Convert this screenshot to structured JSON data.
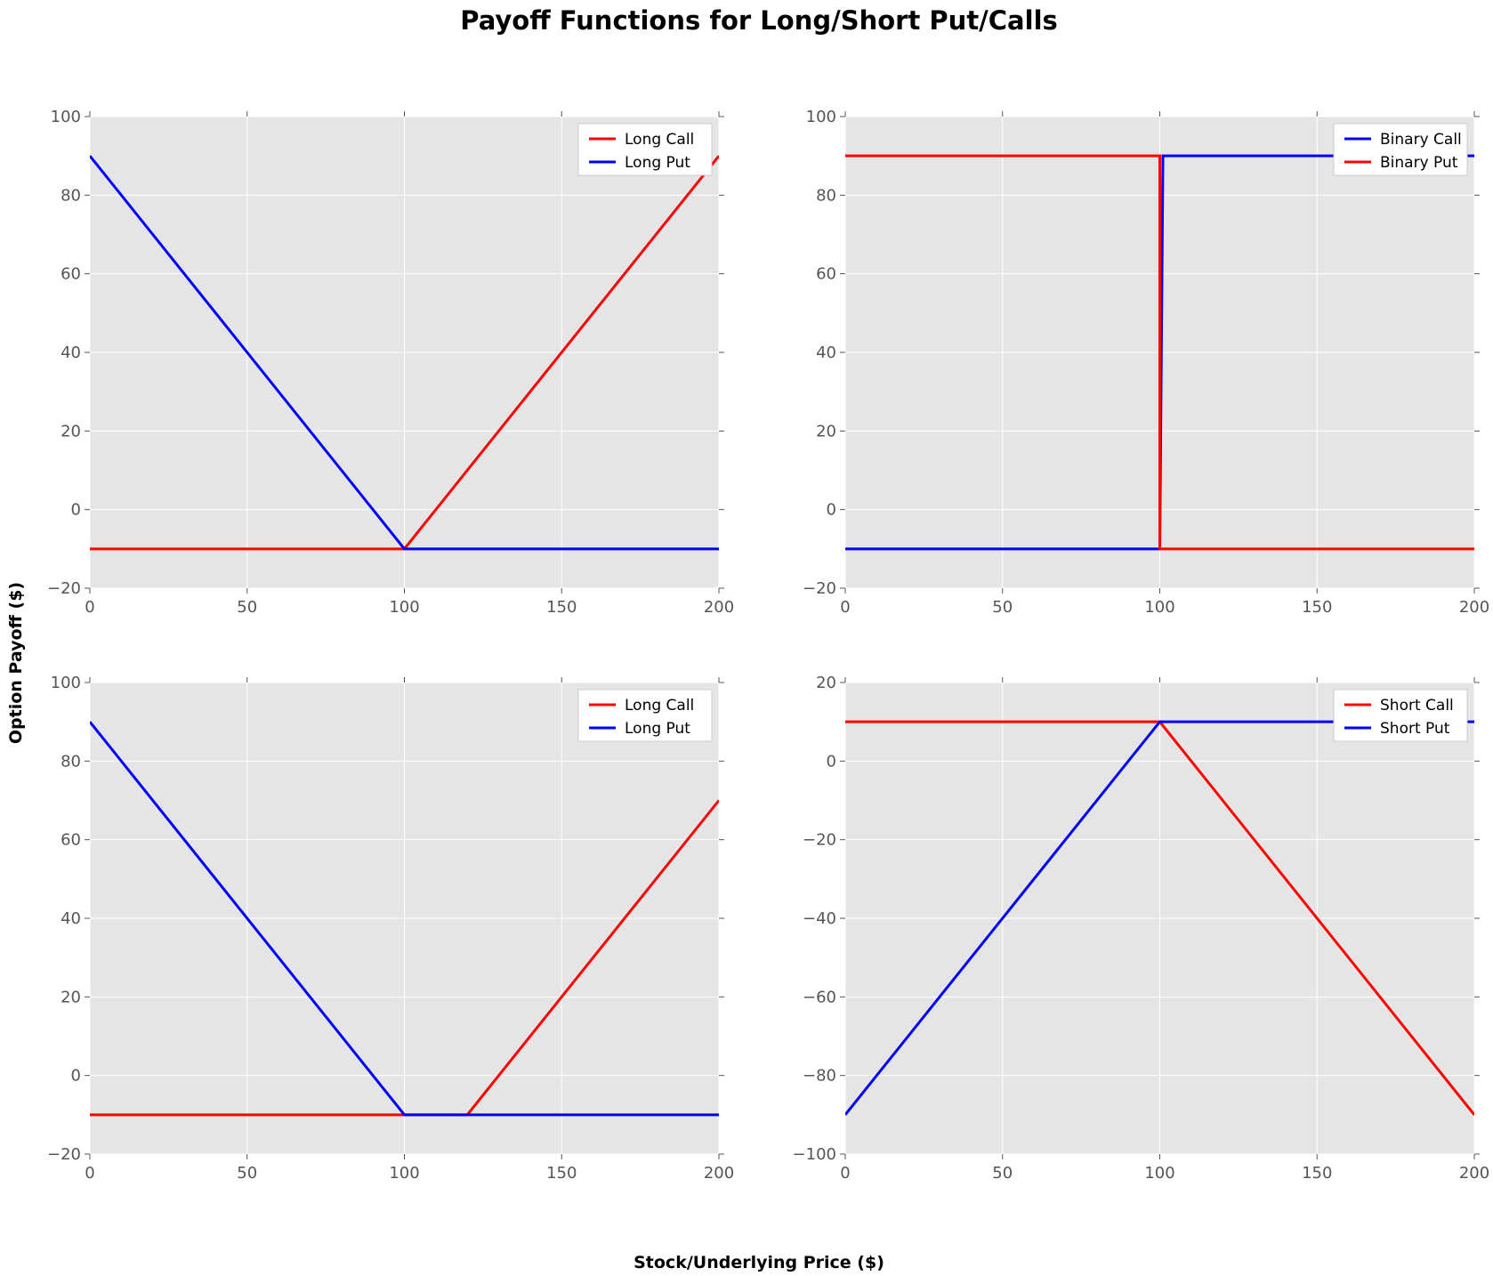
{
  "figure": {
    "title": "Payoff Functions for Long/Short Put/Calls",
    "xlabel": "Stock/Underlying Price ($)",
    "ylabel": "Option Payoff ($)"
  },
  "chart_data": [
    {
      "type": "line",
      "position": "top-left",
      "xlim": [
        0,
        200
      ],
      "ylim": [
        -20,
        100
      ],
      "xticks": [
        "0",
        "50",
        "100",
        "150",
        "200"
      ],
      "yticks": [
        "−20",
        "0",
        "20",
        "40",
        "60",
        "80",
        "100"
      ],
      "grid": true,
      "legend": "top-right",
      "series": [
        {
          "name": "Long Call",
          "color": "#ff0000",
          "x": [
            0,
            100,
            200
          ],
          "y": [
            -10,
            -10,
            90
          ]
        },
        {
          "name": "Long Put",
          "color": "#0000ff",
          "x": [
            0,
            100,
            200
          ],
          "y": [
            90,
            -10,
            -10
          ]
        }
      ]
    },
    {
      "type": "line",
      "position": "top-right",
      "xlim": [
        0,
        200
      ],
      "ylim": [
        -20,
        100
      ],
      "xticks": [
        "0",
        "50",
        "100",
        "150",
        "200"
      ],
      "yticks": [
        "−20",
        "0",
        "20",
        "40",
        "60",
        "80",
        "100"
      ],
      "grid": true,
      "legend": "top-right",
      "series": [
        {
          "name": "Binary Call",
          "color": "#0000ff",
          "x": [
            0,
            100,
            101,
            200
          ],
          "y": [
            -10,
            -10,
            90,
            90
          ]
        },
        {
          "name": "Binary Put",
          "color": "#ff0000",
          "x": [
            0,
            100,
            100,
            200
          ],
          "y": [
            90,
            90,
            -10,
            -10
          ]
        }
      ]
    },
    {
      "type": "line",
      "position": "bottom-left",
      "xlim": [
        0,
        200
      ],
      "ylim": [
        -20,
        100
      ],
      "xticks": [
        "0",
        "50",
        "100",
        "150",
        "200"
      ],
      "yticks": [
        "−20",
        "0",
        "20",
        "40",
        "60",
        "80",
        "100"
      ],
      "grid": true,
      "legend": "top-right",
      "series": [
        {
          "name": "Long Call",
          "color": "#ff0000",
          "x": [
            0,
            120,
            200
          ],
          "y": [
            -10,
            -10,
            70
          ]
        },
        {
          "name": "Long Put",
          "color": "#0000ff",
          "x": [
            0,
            100,
            200
          ],
          "y": [
            90,
            -10,
            -10
          ]
        }
      ]
    },
    {
      "type": "line",
      "position": "bottom-right",
      "xlim": [
        0,
        200
      ],
      "ylim": [
        -100,
        20
      ],
      "xticks": [
        "0",
        "50",
        "100",
        "150",
        "200"
      ],
      "yticks": [
        "−100",
        "−80",
        "−60",
        "−40",
        "−20",
        "0",
        "20"
      ],
      "grid": true,
      "legend": "top-right",
      "series": [
        {
          "name": "Short Call",
          "color": "#ff0000",
          "x": [
            0,
            100,
            200
          ],
          "y": [
            10,
            10,
            -90
          ]
        },
        {
          "name": "Short Put",
          "color": "#0000ff",
          "x": [
            0,
            100,
            200
          ],
          "y": [
            -90,
            10,
            10
          ]
        }
      ]
    }
  ]
}
